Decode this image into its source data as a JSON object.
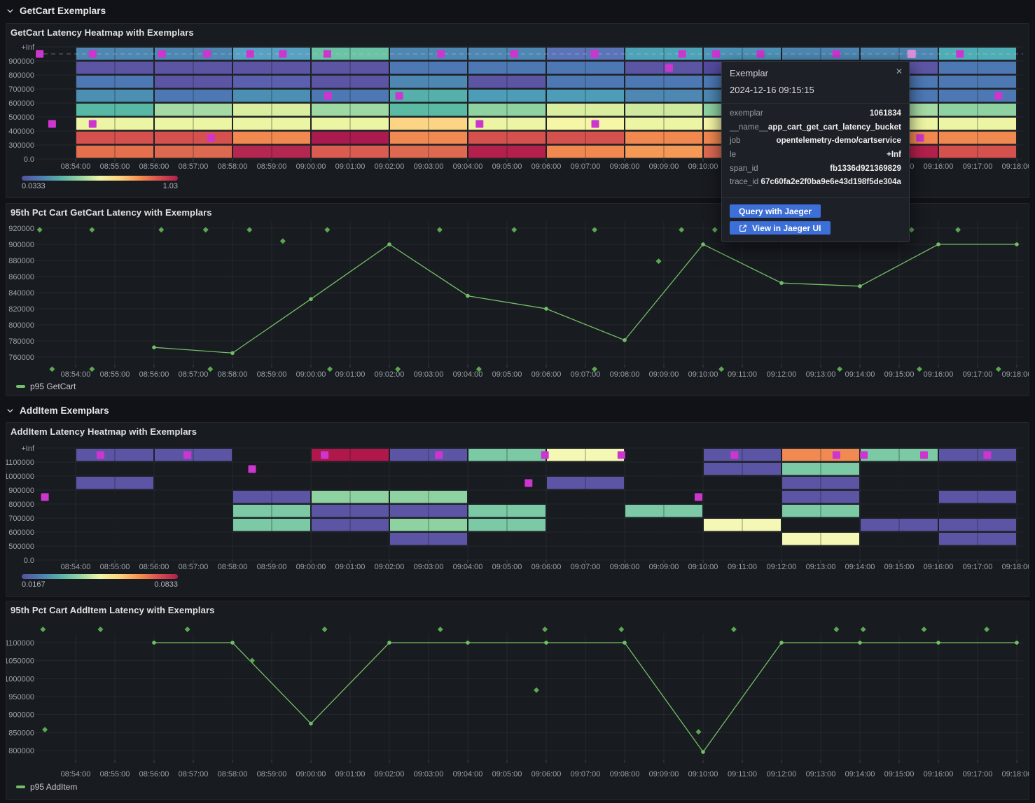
{
  "sections": [
    {
      "title": "GetCart Exemplars"
    },
    {
      "title": "AddItem Exemplars"
    }
  ],
  "panels": [
    {
      "title": "GetCart Latency Heatmap with Exemplars"
    },
    {
      "title": "95th Pct Cart GetCart Latency with Exemplars",
      "legend": "p95 GetCart"
    },
    {
      "title": "AddItem Latency Heatmap with Exemplars"
    },
    {
      "title": "95th Pct Cart AddItem Latency with Exemplars",
      "legend": "p95 AddItem"
    }
  ],
  "tooltip": {
    "title": "Exemplar",
    "close_label": "✕",
    "timestamp": "2024-12-16 09:15:15",
    "fields": [
      {
        "label": "exemplar",
        "value": "1061834"
      },
      {
        "label": "__name__",
        "value": "app_cart_get_cart_latency_bucket"
      },
      {
        "label": "job",
        "value": "opentelemetry-demo/cartservice"
      },
      {
        "label": "le",
        "value": "+Inf"
      },
      {
        "label": "span_id",
        "value": "fb1336d921369829"
      },
      {
        "label": "trace_id",
        "value": "67c60fa2e2f0ba9e6e43d198f5de304a"
      }
    ],
    "buttons": [
      {
        "label": "Query with Jaeger",
        "icon": null
      },
      {
        "label": "View in Jaeger UI",
        "icon": "external-link-icon"
      }
    ]
  },
  "colors": {
    "page_bg": "#111217",
    "panel_bg": "#181b1f",
    "series_green": "#73bf69",
    "exemplar_diamond_green": "#5ca754",
    "exemplar_magenta": "#cd35cf",
    "exemplar_highlight": "#d992da",
    "accent_blue": "#3d6fd8",
    "colorbar_gradient": [
      "#52519e",
      "#4d7fb2",
      "#58b2a6",
      "#97d5a2",
      "#eef6a6",
      "#fdd380",
      "#f5934f",
      "#d8514e",
      "#b11e4b"
    ]
  },
  "chart_data": {
    "time_axis": {
      "start": "08:53:00",
      "end": "09:18:10",
      "labels": [
        "08:54:00",
        "08:55:00",
        "08:56:00",
        "08:57:00",
        "08:58:00",
        "08:59:00",
        "09:00:00",
        "09:01:00",
        "09:02:00",
        "09:03:00",
        "09:04:00",
        "09:05:00",
        "09:06:00",
        "09:07:00",
        "09:08:00",
        "09:09:00",
        "09:10:00",
        "09:11:00",
        "09:12:00",
        "09:13:00",
        "09:14:00",
        "09:15:00",
        "09:16:00",
        "09:17:00",
        "09:18:00"
      ]
    },
    "charts": [
      {
        "type": "heatmap",
        "title": "GetCart Latency Heatmap with Exemplars",
        "y_labels_top_to_bottom": [
          "+Inf",
          "900000",
          "800000",
          "700000",
          "600000",
          "500000",
          "400000",
          "300000",
          "0.0"
        ],
        "bucket_minutes": 2,
        "guide_row": 0,
        "colorbar": {
          "min": "0.0333",
          "max": "1.03"
        },
        "columns": [
          {
            "t": "08:54:00",
            "cells": [
              "#4d87b2",
              "#5c55a4",
              "#4d78b4",
              "#4b90b2",
              "#57b8a4",
              "#ecf5a4",
              "#d5514e",
              "#e4704d"
            ]
          },
          {
            "t": "08:56:00",
            "cells": [
              "#4d87b2",
              "#5c55a4",
              "#5c55a4",
              "#4d78b4",
              "#a5daa4",
              "#ecf5a4",
              "#d5514e",
              "#dd6a50"
            ]
          },
          {
            "t": "08:58:00",
            "cells": [
              "#58a1c2",
              "#5c55a4",
              "#5a60ae",
              "#4b90b2",
              "#d9ee9e",
              "#ecf5a4",
              "#f0884f",
              "#b42750"
            ]
          },
          {
            "t": "09:00:00",
            "cells": [
              "#69c3a4",
              "#5c55a4",
              "#5c55a4",
              "#4d78b4",
              "#9ed8a2",
              "#ecf5a4",
              "#a91a4e",
              "#da5b50"
            ]
          },
          {
            "t": "09:02:00",
            "cells": [
              "#4d87b2",
              "#4d78b4",
              "#4d87b2",
              "#55b0ab",
              "#5bbaa4",
              "#fbd585",
              "#f08a52",
              "#dd6a50"
            ]
          },
          {
            "t": "09:04:00",
            "cells": [
              "#4d87b2",
              "#4d78b4",
              "#5c55a4",
              "#4d9cb8",
              "#8fd2a2",
              "#ecf5a4",
              "#d5514e",
              "#b3204b"
            ]
          },
          {
            "t": "09:06:00",
            "cells": [
              "#5b74b8",
              "#4d78b4",
              "#4d78b4",
              "#4d9cb8",
              "#d9ee9e",
              "#f5f7a6",
              "#d5514e",
              "#f0884f"
            ]
          },
          {
            "t": "09:08:00",
            "cells": [
              "#4da4b8",
              "#5c55a4",
              "#4d78b4",
              "#4d87b2",
              "#cfe99f",
              "#ecf5a4",
              "#f0884f",
              "#f59a56"
            ]
          },
          {
            "t": "09:10:00",
            "cells": [
              "#4d94b8",
              "#544a9e",
              "#4d78b4",
              "#4d87b2",
              "#8fd2a2",
              "#f5f7a6",
              "#f0884f",
              "#dd6a50"
            ]
          },
          {
            "t": "09:12:00",
            "cells": [
              "#4d87b2",
              "#5c55a4",
              "#4d78b4",
              "#4b90b2",
              "#8fd2a2",
              "#ecf5a4",
              "#d5514e",
              "#d5514e"
            ]
          },
          {
            "t": "09:14:00",
            "cells": [
              "#4d87b2",
              "#5c55a4",
              "#4d78b4",
              "#4d78b4",
              "#a5daa4",
              "#ecf5a4",
              "#f0884f",
              "#b3204b"
            ]
          },
          {
            "t": "09:16:00",
            "cells": [
              "#4fadb6",
              "#4d78b4",
              "#4d78b4",
              "#4d78b4",
              "#8fd2a2",
              "#ecf5a4",
              "#f0884f",
              "#d5514e"
            ]
          }
        ],
        "exemplars": [
          {
            "t": "08:53:05",
            "row": 0
          },
          {
            "t": "08:54:26",
            "row": 0
          },
          {
            "t": "08:56:12",
            "row": 0
          },
          {
            "t": "08:57:21",
            "row": 0
          },
          {
            "t": "08:58:27",
            "row": 0
          },
          {
            "t": "08:59:17",
            "row": 0
          },
          {
            "t": "09:00:25",
            "row": 0
          },
          {
            "t": "09:03:19",
            "row": 0
          },
          {
            "t": "09:05:11",
            "row": 0
          },
          {
            "t": "09:07:14",
            "row": 0
          },
          {
            "t": "09:09:28",
            "row": 0
          },
          {
            "t": "09:10:20",
            "row": 0
          },
          {
            "t": "09:11:28",
            "row": 0
          },
          {
            "t": "09:13:24",
            "row": 0
          },
          {
            "t": "09:16:33",
            "row": 0
          },
          {
            "t": "09:09:08",
            "row": 1
          },
          {
            "t": "09:00:26",
            "row": 3
          },
          {
            "t": "09:02:15",
            "row": 3
          },
          {
            "t": "09:17:32",
            "row": 3
          },
          {
            "t": "08:53:24",
            "row": 5
          },
          {
            "t": "08:54:26",
            "row": 5
          },
          {
            "t": "09:04:18",
            "row": 5
          },
          {
            "t": "09:07:15",
            "row": 5
          },
          {
            "t": "08:57:27",
            "row": 6
          },
          {
            "t": "09:15:32",
            "row": 6
          }
        ],
        "highlighted_exemplar": {
          "t": "09:15:19",
          "row": 0
        }
      },
      {
        "type": "line",
        "title": "95th Pct Cart GetCart Latency with Exemplars",
        "yticks": [
          760000,
          780000,
          800000,
          820000,
          840000,
          860000,
          880000,
          900000,
          920000
        ],
        "series": [
          {
            "name": "p95 GetCart",
            "x": [
              "08:56:00",
              "08:58:00",
              "09:00:00",
              "09:02:00",
              "09:04:00",
              "09:06:00",
              "09:08:00",
              "09:10:00",
              "09:12:00",
              "09:14:00",
              "09:16:00",
              "09:18:00"
            ],
            "values": [
              772000,
              765000,
              832000,
              900000,
              836000,
              820000,
              781000,
              900000,
              852000,
              848000,
              900000,
              900000
            ]
          }
        ],
        "exemplars": [
          {
            "t": "08:53:05",
            "v": 918000
          },
          {
            "t": "08:54:25",
            "v": 918000
          },
          {
            "t": "08:56:11",
            "v": 918000
          },
          {
            "t": "08:57:19",
            "v": 918000
          },
          {
            "t": "08:58:26",
            "v": 918000
          },
          {
            "t": "08:59:17",
            "v": 904000
          },
          {
            "t": "09:00:25",
            "v": 918000
          },
          {
            "t": "09:03:17",
            "v": 918000
          },
          {
            "t": "09:05:11",
            "v": 918000
          },
          {
            "t": "09:07:14",
            "v": 918000
          },
          {
            "t": "09:08:52",
            "v": 879000
          },
          {
            "t": "09:09:27",
            "v": 918000
          },
          {
            "t": "09:10:18",
            "v": 918000
          },
          {
            "t": "09:15:19",
            "v": 918000
          },
          {
            "t": "09:16:30",
            "v": 918000
          },
          {
            "t": "08:53:24",
            "v": 745000
          },
          {
            "t": "08:54:25",
            "v": 745000
          },
          {
            "t": "08:57:26",
            "v": 745000
          },
          {
            "t": "09:00:29",
            "v": 745000
          },
          {
            "t": "09:02:13",
            "v": 745000
          },
          {
            "t": "09:04:17",
            "v": 745000
          },
          {
            "t": "09:07:14",
            "v": 745000
          },
          {
            "t": "09:10:28",
            "v": 745000
          },
          {
            "t": "09:13:29",
            "v": 745000
          },
          {
            "t": "09:15:31",
            "v": 745000
          },
          {
            "t": "09:17:32",
            "v": 745000
          }
        ]
      },
      {
        "type": "heatmap",
        "title": "AddItem Latency Heatmap with Exemplars",
        "y_labels_top_to_bottom": [
          "+Inf",
          "1100000",
          "1000000",
          "900000",
          "800000",
          "700000",
          "600000",
          "500000",
          "0.0"
        ],
        "bucket_minutes": 2,
        "guide_row": null,
        "colorbar": {
          "min": "0.0167",
          "max": "0.0833"
        },
        "columns": [
          {
            "t": "08:54:00",
            "cells": [
              {
                "row": 0,
                "color": "#5c55a5"
              },
              {
                "row": 2,
                "color": "#5c55a5"
              }
            ]
          },
          {
            "t": "08:56:00",
            "cells": [
              {
                "row": 0,
                "color": "#5c55a5"
              }
            ]
          },
          {
            "t": "08:58:00",
            "cells": [
              {
                "row": 3,
                "color": "#5c55a5"
              },
              {
                "row": 4,
                "color": "#7bcaa5"
              },
              {
                "row": 5,
                "color": "#7bcaa5"
              }
            ]
          },
          {
            "t": "09:00:00",
            "cells": [
              {
                "row": 0,
                "color": "#b0174a"
              },
              {
                "row": 3,
                "color": "#8fd2a2"
              },
              {
                "row": 4,
                "color": "#5c55a5"
              },
              {
                "row": 5,
                "color": "#5c55a5"
              }
            ]
          },
          {
            "t": "09:02:00",
            "cells": [
              {
                "row": 0,
                "color": "#5c55a5"
              },
              {
                "row": 3,
                "color": "#8fd2a2"
              },
              {
                "row": 4,
                "color": "#5c55a5"
              },
              {
                "row": 5,
                "color": "#8fd2a2"
              },
              {
                "row": 6,
                "color": "#5c55a5"
              }
            ]
          },
          {
            "t": "09:04:00",
            "cells": [
              {
                "row": 0,
                "color": "#7bcaa5"
              },
              {
                "row": 4,
                "color": "#7bcaa5"
              },
              {
                "row": 5,
                "color": "#7bcaa5"
              }
            ]
          },
          {
            "t": "09:06:00",
            "cells": [
              {
                "row": 0,
                "color": "#f5f8b5"
              },
              {
                "row": 2,
                "color": "#5c55a5"
              }
            ]
          },
          {
            "t": "09:08:00",
            "cells": [
              {
                "row": 4,
                "color": "#7bcaa5"
              }
            ]
          },
          {
            "t": "09:10:00",
            "cells": [
              {
                "row": 0,
                "color": "#5c55a5"
              },
              {
                "row": 1,
                "color": "#5c55a5"
              },
              {
                "row": 5,
                "color": "#f5f8b5"
              }
            ]
          },
          {
            "t": "09:12:00",
            "cells": [
              {
                "row": 0,
                "color": "#f08a52"
              },
              {
                "row": 1,
                "color": "#7bcaa5"
              },
              {
                "row": 2,
                "color": "#5c55a5"
              },
              {
                "row": 3,
                "color": "#5c55a5"
              },
              {
                "row": 4,
                "color": "#7bcaa5"
              },
              {
                "row": 6,
                "color": "#f5f8b5"
              }
            ]
          },
          {
            "t": "09:14:00",
            "cells": [
              {
                "row": 0,
                "color": "#7bcaa5"
              },
              {
                "row": 5,
                "color": "#5c55a5"
              }
            ]
          },
          {
            "t": "09:16:00",
            "cells": [
              {
                "row": 0,
                "color": "#5c55a5"
              },
              {
                "row": 3,
                "color": "#5c55a5"
              },
              {
                "row": 5,
                "color": "#5c55a5"
              },
              {
                "row": 6,
                "color": "#5c55a5"
              }
            ]
          }
        ],
        "exemplars": [
          {
            "t": "08:53:13",
            "row": 3
          },
          {
            "t": "08:54:38",
            "row": 0
          },
          {
            "t": "08:56:51",
            "row": 0
          },
          {
            "t": "08:58:30",
            "row": 1
          },
          {
            "t": "09:00:21",
            "row": 0
          },
          {
            "t": "09:03:16",
            "row": 0
          },
          {
            "t": "09:05:33",
            "row": 2
          },
          {
            "t": "09:05:58",
            "row": 0
          },
          {
            "t": "09:07:55",
            "row": 0
          },
          {
            "t": "09:09:53",
            "row": 3
          },
          {
            "t": "09:10:48",
            "row": 0
          },
          {
            "t": "09:13:24",
            "row": 0
          },
          {
            "t": "09:14:06",
            "row": 0
          },
          {
            "t": "09:15:38",
            "row": 0
          },
          {
            "t": "09:17:15",
            "row": 0
          }
        ],
        "highlighted_exemplar": null
      },
      {
        "type": "line",
        "title": "95th Pct Cart AddItem Latency with Exemplars",
        "yticks": [
          800000,
          850000,
          900000,
          950000,
          1000000,
          1050000,
          1100000
        ],
        "series": [
          {
            "name": "p95 AddItem",
            "x": [
              "08:56:00",
              "08:58:00",
              "09:00:00",
              "09:02:00",
              "09:04:00",
              "09:06:00",
              "09:08:00",
              "09:10:00",
              "09:12:00",
              "09:14:00",
              "09:16:00",
              "09:18:00"
            ],
            "values": [
              1100000,
              1100000,
              875000,
              1100000,
              1100000,
              1100000,
              1100000,
              796000,
              1100000,
              1100000,
              1100000,
              1100000
            ]
          }
        ],
        "exemplars": [
          {
            "t": "08:53:10",
            "v": 1137000
          },
          {
            "t": "08:54:38",
            "v": 1137000
          },
          {
            "t": "08:56:51",
            "v": 1137000
          },
          {
            "t": "09:00:21",
            "v": 1137000
          },
          {
            "t": "09:03:18",
            "v": 1137000
          },
          {
            "t": "09:05:58",
            "v": 1137000
          },
          {
            "t": "09:07:55",
            "v": 1137000
          },
          {
            "t": "09:10:47",
            "v": 1137000
          },
          {
            "t": "09:13:24",
            "v": 1137000
          },
          {
            "t": "09:14:05",
            "v": 1137000
          },
          {
            "t": "09:15:38",
            "v": 1137000
          },
          {
            "t": "09:17:14",
            "v": 1137000
          },
          {
            "t": "08:53:13",
            "v": 858000
          },
          {
            "t": "08:58:30",
            "v": 1050000
          },
          {
            "t": "09:05:45",
            "v": 968000
          },
          {
            "t": "09:09:53",
            "v": 852000
          }
        ]
      }
    ]
  }
}
